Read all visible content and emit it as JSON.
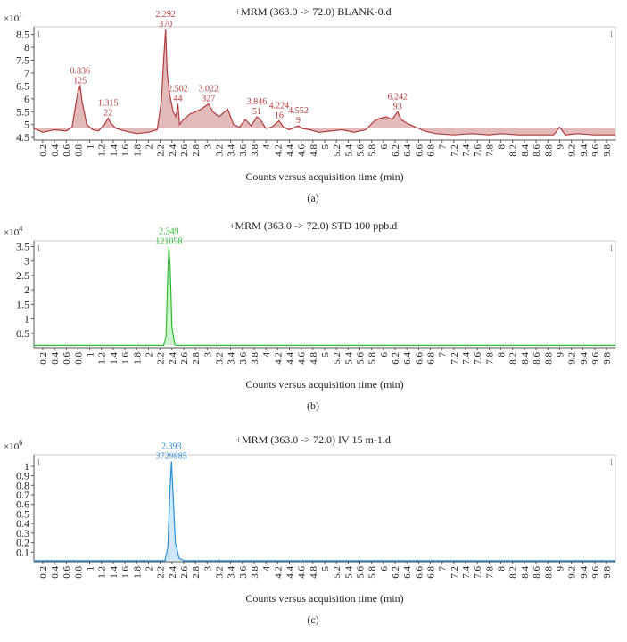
{
  "chart_data": [
    {
      "type": "line",
      "panel": "a",
      "title": "+MRM (363.0 -> 72.0) BLANK-0.d",
      "xlabel": "Counts versus acquisition time (min)",
      "caption": "(a)",
      "multiplier_base": "×10",
      "multiplier_exp": "1",
      "corner_left": "1",
      "corner_right": "1",
      "color": "#b13a3a",
      "fill": "#d9a3a3",
      "xlim": [
        0.05,
        9.95
      ],
      "ylim": [
        4.4,
        8.8
      ],
      "yticks": [
        "4.5",
        "5",
        "5.5",
        "6",
        "6.5",
        "7",
        "7.5",
        "8",
        "8.5"
      ],
      "xticks": [
        "0.2",
        "0.4",
        "0.6",
        "0.8",
        "1",
        "1.2",
        "1.4",
        "1.6",
        "1.8",
        "2",
        "2.2",
        "2.4",
        "2.6",
        "2.8",
        "3",
        "3.2",
        "3.4",
        "3.6",
        "3.8",
        "4",
        "4.2",
        "4.4",
        "4.6",
        "4.8",
        "5",
        "5.2",
        "5.4",
        "5.6",
        "5.8",
        "6",
        "6.2",
        "6.4",
        "6.6",
        "6.8",
        "7",
        "7.2",
        "7.4",
        "7.6",
        "7.8",
        "8",
        "8.2",
        "8.4",
        "8.6",
        "8.8",
        "9",
        "9.2",
        "9.4",
        "9.6",
        "9.8"
      ],
      "x": [
        0.05,
        0.2,
        0.4,
        0.6,
        0.7,
        0.75,
        0.8,
        0.836,
        0.87,
        0.95,
        1.05,
        1.15,
        1.25,
        1.3,
        1.315,
        1.36,
        1.45,
        1.6,
        1.8,
        2.0,
        2.15,
        2.22,
        2.26,
        2.292,
        2.32,
        2.36,
        2.42,
        2.47,
        2.502,
        2.53,
        2.6,
        2.7,
        2.8,
        2.9,
        3.022,
        3.1,
        3.2,
        3.3,
        3.35,
        3.45,
        3.55,
        3.65,
        3.75,
        3.846,
        3.9,
        4.0,
        4.1,
        4.224,
        4.3,
        4.4,
        4.5,
        4.552,
        4.62,
        4.75,
        4.9,
        5.1,
        5.3,
        5.5,
        5.7,
        5.85,
        5.95,
        6.05,
        6.15,
        6.242,
        6.3,
        6.4,
        6.5,
        6.6,
        6.7,
        6.9,
        7.2,
        7.5,
        7.8,
        8.0,
        8.3,
        8.6,
        8.9,
        9.0,
        9.1,
        9.3,
        9.6,
        9.8,
        9.95
      ],
      "y": [
        4.85,
        4.7,
        4.8,
        4.75,
        4.9,
        5.6,
        6.3,
        6.5,
        5.9,
        5.0,
        4.8,
        4.75,
        5.0,
        5.2,
        5.25,
        5.05,
        4.85,
        4.75,
        4.65,
        4.7,
        4.8,
        5.9,
        7.5,
        8.7,
        7.0,
        6.2,
        5.5,
        5.3,
        5.8,
        5.0,
        5.2,
        5.4,
        5.5,
        5.6,
        5.8,
        5.5,
        5.3,
        5.5,
        5.6,
        5.0,
        4.9,
        5.2,
        4.95,
        5.3,
        5.2,
        4.85,
        4.9,
        5.15,
        4.9,
        4.8,
        4.9,
        4.95,
        4.85,
        4.8,
        4.7,
        4.75,
        4.8,
        4.7,
        4.8,
        5.15,
        5.25,
        5.3,
        5.2,
        5.5,
        5.2,
        5.05,
        4.95,
        4.85,
        4.75,
        4.65,
        4.6,
        4.65,
        4.6,
        4.65,
        4.6,
        4.6,
        4.6,
        4.9,
        4.6,
        4.65,
        4.6,
        4.6,
        4.6
      ],
      "annotations": [
        {
          "x": 0.836,
          "y": 6.5,
          "label1": "0.836",
          "label2": "125"
        },
        {
          "x": 1.315,
          "y": 5.25,
          "label1": "1.315",
          "label2": "22"
        },
        {
          "x": 2.292,
          "y": 8.7,
          "label1": "2.292",
          "label2": "370"
        },
        {
          "x": 2.502,
          "y": 5.8,
          "label1": "2.502",
          "label2": "44"
        },
        {
          "x": 3.022,
          "y": 5.8,
          "label1": "3.022",
          "label2": "327"
        },
        {
          "x": 3.846,
          "y": 5.3,
          "label1": "3.846",
          "label2": "51"
        },
        {
          "x": 4.224,
          "y": 5.15,
          "label1": "4.224",
          "label2": "16"
        },
        {
          "x": 4.552,
          "y": 4.95,
          "label1": "4.552",
          "label2": "9"
        },
        {
          "x": 6.242,
          "y": 5.5,
          "label1": "6.242",
          "label2": "93"
        }
      ]
    },
    {
      "type": "line",
      "panel": "b",
      "title": "+MRM (363.0 -> 72.0) STD 100 ppb.d",
      "xlabel": "Counts versus acquisition time (min)",
      "caption": "(b)",
      "multiplier_base": "×10",
      "multiplier_exp": "4",
      "corner_left": "1",
      "corner_right": "1",
      "color": "#2ebd2e",
      "fill": "#bfeebf",
      "xlim": [
        0.05,
        9.95
      ],
      "ylim": [
        0,
        3.7
      ],
      "yticks": [
        "0.5",
        "1",
        "1.5",
        "2",
        "2.5",
        "3",
        "3.5"
      ],
      "xticks": [
        "0.2",
        "0.4",
        "0.6",
        "0.8",
        "1",
        "1.2",
        "1.4",
        "1.6",
        "1.8",
        "2",
        "2.2",
        "2.4",
        "2.6",
        "2.8",
        "3",
        "3.2",
        "3.4",
        "3.6",
        "3.8",
        "4",
        "4.2",
        "4.4",
        "4.6",
        "4.8",
        "5",
        "5.2",
        "5.4",
        "5.6",
        "5.8",
        "6",
        "6.2",
        "6.4",
        "6.6",
        "6.8",
        "7",
        "7.2",
        "7.4",
        "7.6",
        "7.8",
        "8",
        "8.2",
        "8.4",
        "8.6",
        "8.8",
        "9",
        "9.2",
        "9.4",
        "9.6",
        "9.8"
      ],
      "x": [
        0.05,
        2.26,
        2.3,
        2.33,
        2.349,
        2.37,
        2.4,
        2.45,
        2.5,
        9.95
      ],
      "y": [
        0.08,
        0.08,
        0.4,
        2.6,
        3.5,
        2.8,
        0.7,
        0.1,
        0.08,
        0.08
      ],
      "annotations": [
        {
          "x": 2.349,
          "y": 3.5,
          "label1": "2.349",
          "label2": "121058"
        }
      ]
    },
    {
      "type": "line",
      "panel": "c",
      "title": "+MRM (363.0 -> 72.0) IV 15 m-1.d",
      "xlabel": "Counts versus acquisition time (min)",
      "caption": "(c)",
      "multiplier_base": "×10",
      "multiplier_exp": "6",
      "corner_left": "1",
      "corner_right": "1",
      "color": "#2b8fd6",
      "fill": "#bfe0f7",
      "xlim": [
        0.05,
        9.95
      ],
      "ylim": [
        0,
        1.12
      ],
      "yticks": [
        "0.1",
        "0.2",
        "0.3",
        "0.4",
        "0.5",
        "0.6",
        "0.7",
        "0.8",
        "0.9",
        "1"
      ],
      "xticks": [
        "0.2",
        "0.4",
        "0.6",
        "0.8",
        "1",
        "1.2",
        "1.4",
        "1.6",
        "1.8",
        "2",
        "2.2",
        "2.4",
        "2.6",
        "2.8",
        "3",
        "3.2",
        "3.4",
        "3.6",
        "3.8",
        "4",
        "4.2",
        "4.4",
        "4.6",
        "4.8",
        "5",
        "5.2",
        "5.4",
        "5.6",
        "5.8",
        "6",
        "6.2",
        "6.4",
        "6.6",
        "6.8",
        "7",
        "7.2",
        "7.4",
        "7.6",
        "7.8",
        "8",
        "8.2",
        "8.4",
        "8.6",
        "8.8",
        "9",
        "9.2",
        "9.4",
        "9.6",
        "9.8"
      ],
      "x": [
        0.05,
        2.28,
        2.33,
        2.37,
        2.393,
        2.42,
        2.46,
        2.52,
        2.6,
        9.95
      ],
      "y": [
        0.01,
        0.01,
        0.15,
        0.8,
        1.05,
        0.7,
        0.2,
        0.04,
        0.01,
        0.01
      ],
      "annotations": [
        {
          "x": 2.393,
          "y": 1.05,
          "label1": "2.393",
          "label2": "3729885"
        }
      ]
    }
  ]
}
